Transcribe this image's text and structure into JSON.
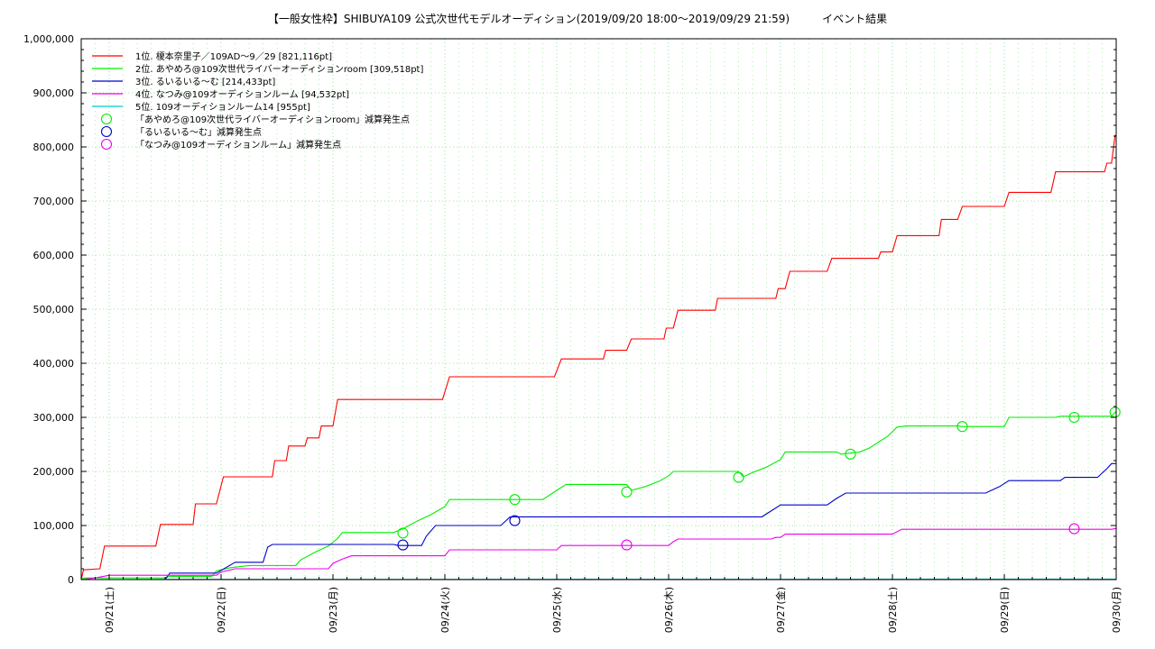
{
  "chart_data": {
    "type": "line",
    "title": "【一般女性枠】SHIBUYA109 公式次世代モデルオーディション(2019/09/20 18:00～2019/09/29 21:59)　　　イベント結果",
    "xlabel": "",
    "ylabel": "",
    "ylim": [
      0,
      1000000
    ],
    "xlim": [
      "2019/09/20 18:00",
      "2019/09/30 00:00"
    ],
    "grid": true,
    "legend_position": "top-left",
    "x_tick_labels": [
      "09/21(土)",
      "09/22(日)",
      "09/23(月)",
      "09/24(火)",
      "09/25(水)",
      "09/26(木)",
      "09/27(金)",
      "09/28(土)",
      "09/29(日)",
      "09/30(月)"
    ],
    "y_tick_labels": [
      "0",
      "100,000",
      "200,000",
      "300,000",
      "400,000",
      "500,000",
      "600,000",
      "700,000",
      "800,000",
      "900,000",
      "1,000,000"
    ],
    "series": [
      {
        "name": "1位. 榎本奈里子／109AD〜9／29 [821,116pt]",
        "color": "#ff0000",
        "points": [
          [
            "2019/09/20 18:00",
            0
          ],
          [
            "2019/09/20 18:30",
            18000
          ],
          [
            "2019/09/20 22:00",
            20000
          ],
          [
            "2019/09/20 23:00",
            62000
          ],
          [
            "2019/09/21 10:00",
            62000
          ],
          [
            "2019/09/21 11:00",
            102000
          ],
          [
            "2019/09/21 18:00",
            102000
          ],
          [
            "2019/09/21 18:30",
            140000
          ],
          [
            "2019/09/21 23:00",
            140000
          ],
          [
            "2019/09/22 00:30",
            190000
          ],
          [
            "2019/09/22 11:00",
            190000
          ],
          [
            "2019/09/22 11:30",
            220000
          ],
          [
            "2019/09/22 14:00",
            220000
          ],
          [
            "2019/09/22 14:30",
            247000
          ],
          [
            "2019/09/22 18:00",
            247000
          ],
          [
            "2019/09/22 18:30",
            262000
          ],
          [
            "2019/09/22 21:00",
            262000
          ],
          [
            "2019/09/22 21:30",
            284000
          ],
          [
            "2019/09/23 00:00",
            284000
          ],
          [
            "2019/09/23 01:00",
            333000
          ],
          [
            "2019/09/23 23:30",
            333000
          ],
          [
            "2019/09/24 01:00",
            375000
          ],
          [
            "2019/09/24 23:30",
            375000
          ],
          [
            "2019/09/25 01:00",
            408000
          ],
          [
            "2019/09/25 10:00",
            408000
          ],
          [
            "2019/09/25 10:30",
            424000
          ],
          [
            "2019/09/25 15:00",
            424000
          ],
          [
            "2019/09/25 16:00",
            445000
          ],
          [
            "2019/09/25 23:00",
            445000
          ],
          [
            "2019/09/25 23:30",
            465000
          ],
          [
            "2019/09/26 01:00",
            465000
          ],
          [
            "2019/09/26 02:00",
            498000
          ],
          [
            "2019/09/26 10:00",
            498000
          ],
          [
            "2019/09/26 10:30",
            520000
          ],
          [
            "2019/09/26 23:00",
            520000
          ],
          [
            "2019/09/26 23:30",
            538000
          ],
          [
            "2019/09/27 01:00",
            538000
          ],
          [
            "2019/09/27 02:00",
            570000
          ],
          [
            "2019/09/27 10:00",
            570000
          ],
          [
            "2019/09/27 11:00",
            594000
          ],
          [
            "2019/09/27 21:00",
            594000
          ],
          [
            "2019/09/27 21:30",
            606000
          ],
          [
            "2019/09/28 00:00",
            606000
          ],
          [
            "2019/09/28 01:00",
            636000
          ],
          [
            "2019/09/28 10:00",
            636000
          ],
          [
            "2019/09/28 10:30",
            666000
          ],
          [
            "2019/09/28 14:00",
            666000
          ],
          [
            "2019/09/28 15:00",
            690000
          ],
          [
            "2019/09/29 00:00",
            690000
          ],
          [
            "2019/09/29 01:00",
            716000
          ],
          [
            "2019/09/29 10:00",
            716000
          ],
          [
            "2019/09/29 11:00",
            754000
          ],
          [
            "2019/09/29 21:30",
            754000
          ],
          [
            "2019/09/29 22:00",
            770000
          ],
          [
            "2019/09/29 23:00",
            770000
          ],
          [
            "2019/09/29 23:45",
            821116
          ],
          [
            "2019/09/30 00:00",
            821116
          ]
        ]
      },
      {
        "name": "2位. あやめろ@109次世代ライバーオーディションroom [309,518pt]",
        "color": "#00ee00",
        "points": [
          [
            "2019/09/20 18:00",
            0
          ],
          [
            "2019/09/20 18:30",
            3000
          ],
          [
            "2019/09/21 12:00",
            3000
          ],
          [
            "2019/09/21 13:00",
            6000
          ],
          [
            "2019/09/21 22:00",
            6000
          ],
          [
            "2019/09/21 23:00",
            16000
          ],
          [
            "2019/09/22 02:00",
            22000
          ],
          [
            "2019/09/22 06:00",
            26000
          ],
          [
            "2019/09/22 16:00",
            26000
          ],
          [
            "2019/09/22 17:00",
            36000
          ],
          [
            "2019/09/22 20:00",
            50000
          ],
          [
            "2019/09/22 23:00",
            62000
          ],
          [
            "2019/09/23 01:00",
            76000
          ],
          [
            "2019/09/23 02:00",
            87000
          ],
          [
            "2019/09/23 13:00",
            87000
          ],
          [
            "2019/09/23 15:00",
            94000
          ],
          [
            "2019/09/23 18:00",
            108000
          ],
          [
            "2019/09/23 21:00",
            120000
          ],
          [
            "2019/09/24 00:00",
            135000
          ],
          [
            "2019/09/24 01:00",
            148000
          ],
          [
            "2019/09/24 21:00",
            148000
          ],
          [
            "2019/09/25 00:00",
            165000
          ],
          [
            "2019/09/25 02:00",
            176000
          ],
          [
            "2019/09/25 15:00",
            176000
          ],
          [
            "2019/09/25 16:00",
            165000
          ],
          [
            "2019/09/25 19:00",
            172000
          ],
          [
            "2019/09/25 22:00",
            182000
          ],
          [
            "2019/09/26 00:00",
            192000
          ],
          [
            "2019/09/26 01:00",
            200000
          ],
          [
            "2019/09/26 15:00",
            200000
          ],
          [
            "2019/09/26 16:00",
            190000
          ],
          [
            "2019/09/26 18:00",
            198000
          ],
          [
            "2019/09/26 21:00",
            208000
          ],
          [
            "2019/09/27 00:00",
            222000
          ],
          [
            "2019/09/27 01:00",
            236000
          ],
          [
            "2019/09/27 12:00",
            236000
          ],
          [
            "2019/09/27 13:00",
            232000
          ],
          [
            "2019/09/27 17:00",
            236000
          ],
          [
            "2019/09/27 19:00",
            243000
          ],
          [
            "2019/09/27 23:00",
            265000
          ],
          [
            "2019/09/28 01:00",
            282000
          ],
          [
            "2019/09/28 03:00",
            284000
          ],
          [
            "2019/09/28 14:00",
            284000
          ],
          [
            "2019/09/28 15:00",
            283000
          ],
          [
            "2019/09/29 00:00",
            283000
          ],
          [
            "2019/09/29 01:00",
            300000
          ],
          [
            "2019/09/29 11:00",
            300000
          ],
          [
            "2019/09/29 12:00",
            302000
          ],
          [
            "2019/09/29 23:00",
            302000
          ],
          [
            "2019/09/29 23:45",
            309518
          ],
          [
            "2019/09/30 00:00",
            309518
          ]
        ]
      },
      {
        "name": "3位. るいるいる〜む [214,433pt]",
        "color": "#0000cc",
        "points": [
          [
            "2019/09/20 18:00",
            0
          ],
          [
            "2019/09/21 12:00",
            0
          ],
          [
            "2019/09/21 13:00",
            12000
          ],
          [
            "2019/09/21 23:00",
            12000
          ],
          [
            "2019/09/22 01:00",
            22000
          ],
          [
            "2019/09/22 03:00",
            32000
          ],
          [
            "2019/09/22 09:00",
            32000
          ],
          [
            "2019/09/22 10:00",
            60000
          ],
          [
            "2019/09/22 11:00",
            65000
          ],
          [
            "2019/09/23 13:00",
            65000
          ],
          [
            "2019/09/23 14:00",
            63000
          ],
          [
            "2019/09/23 19:00",
            63000
          ],
          [
            "2019/09/23 20:00",
            80000
          ],
          [
            "2019/09/23 22:00",
            100000
          ],
          [
            "2019/09/24 12:00",
            100000
          ],
          [
            "2019/09/24 14:00",
            116000
          ],
          [
            "2019/09/26 20:00",
            116000
          ],
          [
            "2019/09/27 00:00",
            138000
          ],
          [
            "2019/09/27 10:00",
            138000
          ],
          [
            "2019/09/27 12:00",
            150000
          ],
          [
            "2019/09/27 14:00",
            160000
          ],
          [
            "2019/09/28 20:00",
            160000
          ],
          [
            "2019/09/28 23:00",
            172000
          ],
          [
            "2019/09/29 01:00",
            183000
          ],
          [
            "2019/09/29 12:00",
            183000
          ],
          [
            "2019/09/29 13:00",
            189000
          ],
          [
            "2019/09/29 20:00",
            189000
          ],
          [
            "2019/09/29 22:00",
            205000
          ],
          [
            "2019/09/29 23:00",
            214433
          ],
          [
            "2019/09/30 00:00",
            214433
          ]
        ]
      },
      {
        "name": "4位. なつみ@109オーディションルーム [94,532pt]",
        "color": "#ee00ee",
        "points": [
          [
            "2019/09/20 18:00",
            0
          ],
          [
            "2019/09/20 21:00",
            3000
          ],
          [
            "2019/09/21 00:00",
            8000
          ],
          [
            "2019/09/21 23:00",
            8000
          ],
          [
            "2019/09/22 00:00",
            14000
          ],
          [
            "2019/09/22 03:00",
            20000
          ],
          [
            "2019/09/22 23:00",
            20000
          ],
          [
            "2019/09/23 00:00",
            30000
          ],
          [
            "2019/09/23 02:00",
            38000
          ],
          [
            "2019/09/23 04:00",
            44000
          ],
          [
            "2019/09/24 00:00",
            44000
          ],
          [
            "2019/09/24 01:00",
            55000
          ],
          [
            "2019/09/25 00:00",
            55000
          ],
          [
            "2019/09/25 01:00",
            63000
          ],
          [
            "2019/09/26 00:00",
            63000
          ],
          [
            "2019/09/26 01:00",
            70000
          ],
          [
            "2019/09/26 02:00",
            75000
          ],
          [
            "2019/09/26 22:00",
            75000
          ],
          [
            "2019/09/26 23:00",
            78000
          ],
          [
            "2019/09/27 00:00",
            78000
          ],
          [
            "2019/09/27 01:00",
            84000
          ],
          [
            "2019/09/28 00:00",
            84000
          ],
          [
            "2019/09/28 02:00",
            93000
          ],
          [
            "2019/09/29 23:00",
            93000
          ],
          [
            "2019/09/30 00:00",
            94532
          ]
        ]
      },
      {
        "name": "5位. 109オーディションルーム14 [955pt]",
        "color": "#00cccc",
        "points": [
          [
            "2019/09/20 18:00",
            0
          ],
          [
            "2019/09/21 12:00",
            500
          ],
          [
            "2019/09/30 00:00",
            955
          ]
        ]
      }
    ],
    "markers": [
      {
        "name": "「あやめろ@109次世代ライバーオーディションroom」減算発生点",
        "color": "#00ee00",
        "points": [
          [
            "2019/09/23 15:00",
            86000
          ],
          [
            "2019/09/24 15:00",
            148000
          ],
          [
            "2019/09/25 15:00",
            162000
          ],
          [
            "2019/09/26 15:00",
            189000
          ],
          [
            "2019/09/27 15:00",
            232000
          ],
          [
            "2019/09/28 15:00",
            283000
          ],
          [
            "2019/09/29 15:00",
            300000
          ],
          [
            "2019/09/29 23:45",
            309518
          ]
        ]
      },
      {
        "name": "「るいるいる〜む」減算発生点",
        "color": "#0000cc",
        "points": [
          [
            "2019/09/23 15:00",
            64000
          ],
          [
            "2019/09/24 15:00",
            109000
          ]
        ]
      },
      {
        "name": "「なつみ@109オーディションルーム」減算発生点",
        "color": "#ee00ee",
        "points": [
          [
            "2019/09/25 15:00",
            64000
          ],
          [
            "2019/09/29 15:00",
            94000
          ]
        ]
      }
    ]
  }
}
